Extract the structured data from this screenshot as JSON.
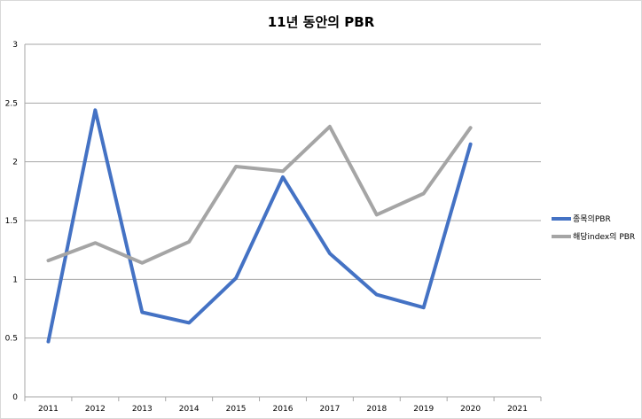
{
  "chart_data": {
    "type": "line",
    "title": "11년 동안의 PBR",
    "xlabel": "",
    "ylabel": "",
    "categories": [
      "2011",
      "2012",
      "2013",
      "2014",
      "2015",
      "2016",
      "2017",
      "2018",
      "2019",
      "2020",
      "2021"
    ],
    "ylim": [
      0,
      3
    ],
    "yticks": [
      "0",
      "0.5",
      "1",
      "1.5",
      "2",
      "2.5",
      "3"
    ],
    "grid": true,
    "legend_position": "right",
    "series": [
      {
        "name": "종목의PBR",
        "color": "#4472c4",
        "values": [
          0.47,
          2.44,
          0.72,
          0.63,
          1.01,
          1.87,
          1.22,
          0.87,
          0.76,
          2.15,
          null
        ]
      },
      {
        "name": "해당index의 PBR",
        "color": "#a5a5a5",
        "values": [
          1.16,
          1.31,
          1.14,
          1.32,
          1.96,
          1.92,
          2.3,
          1.55,
          1.73,
          2.29,
          null
        ]
      }
    ]
  }
}
